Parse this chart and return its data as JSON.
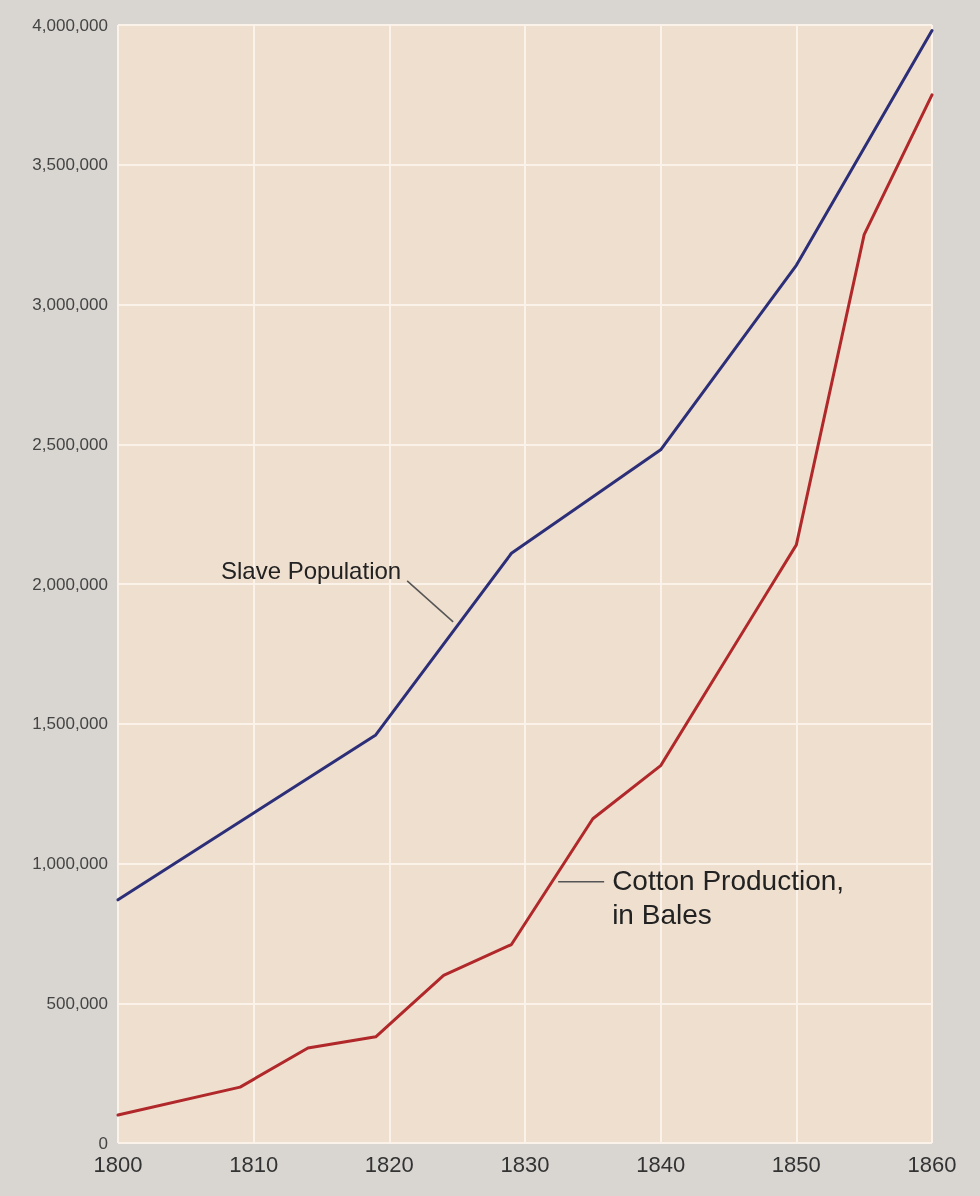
{
  "chart_data": {
    "type": "line",
    "x": [
      1800,
      1809,
      1814,
      1819,
      1824,
      1829,
      1835,
      1840,
      1850,
      1855,
      1860
    ],
    "series": [
      {
        "color": "#2c2f78",
        "x": [
          1800,
          1819,
          1829,
          1840,
          1850,
          1860
        ],
        "values": [
          870000,
          1460000,
          2110000,
          2480000,
          3140000,
          3980000
        ]
      },
      {
        "color": "#b0282a",
        "values": [
          100000,
          200000,
          340000,
          380000,
          600000,
          710000,
          1160000,
          1350000,
          2140000,
          3250000,
          3750000
        ]
      }
    ],
    "annotations": [
      {
        "text": "Slave Population",
        "x": 1825,
        "y": 1850000
      },
      {
        "text": "Cotton Production,\nin Bales",
        "x": 1832,
        "y": 935000
      }
    ],
    "xlim": [
      1800,
      1860
    ],
    "xticks": [
      1800,
      1810,
      1820,
      1830,
      1840,
      1850,
      1860
    ],
    "ylim": [
      0,
      4000000
    ],
    "yticks": [
      0,
      {
        "value": 500000,
        "label": "500,000"
      },
      {
        "value": 1000000,
        "label": "1,000,000"
      },
      {
        "value": 1500000,
        "label": "1,500,000"
      },
      {
        "value": 2000000,
        "label": "2,000,000"
      },
      {
        "value": 2500000,
        "label": "2,500,000"
      },
      {
        "value": 3000000,
        "label": "3,000,000"
      },
      {
        "value": 3500000,
        "label": "3,500,000"
      },
      {
        "value": 4000000,
        "label": "4,000,000"
      }
    ],
    "grid": true,
    "marker": "none",
    "line_style": "solid"
  }
}
